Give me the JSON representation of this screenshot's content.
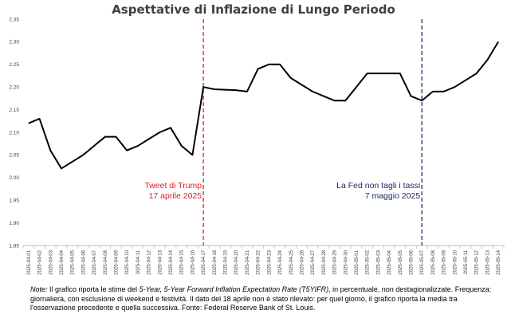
{
  "chart_data": {
    "type": "line",
    "title": "Aspettative di Inflazione di Lungo Periodo",
    "xlabel": "",
    "ylabel": "",
    "ylim": [
      1.85,
      2.35
    ],
    "yticks": [
      "1.85",
      "1.90",
      "1.95",
      "2.00",
      "2.05",
      "2.10",
      "2.15",
      "2.20",
      "2.25",
      "2.30",
      "2.35"
    ],
    "grid": false,
    "categories": [
      "2025-04-01",
      "2025-04-02",
      "2025-04-03",
      "2025-04-04",
      "2025-04-05",
      "2025-04-06",
      "2025-04-07",
      "2025-04-08",
      "2025-04-09",
      "2025-04-10",
      "2025-04-11",
      "2025-04-12",
      "2025-04-13",
      "2025-04-14",
      "2025-04-15",
      "2025-04-16",
      "2025-04-17",
      "2025-04-18",
      "2025-04-19",
      "2025-04-20",
      "2025-04-21",
      "2025-04-22",
      "2025-04-23",
      "2025-04-24",
      "2025-04-25",
      "2025-04-26",
      "2025-04-27",
      "2025-04-28",
      "2025-04-29",
      "2025-04-30",
      "2025-05-01",
      "2025-05-02",
      "2025-05-03",
      "2025-05-04",
      "2025-05-05",
      "2025-05-06",
      "2025-05-07",
      "2025-05-08",
      "2025-05-09",
      "2025-05-10",
      "2025-05-11",
      "2025-05-12",
      "2025-05-13",
      "2025-05-14"
    ],
    "series": [
      {
        "name": "",
        "color": "#000000",
        "values": [
          2.12,
          2.13,
          2.06,
          2.02,
          2.035,
          2.05,
          2.07,
          2.09,
          2.09,
          2.06,
          2.07,
          2.085,
          2.1,
          2.11,
          2.07,
          2.05,
          2.2,
          2.195,
          2.194,
          2.193,
          2.19,
          2.24,
          2.25,
          2.25,
          2.22,
          2.205,
          2.19,
          2.18,
          2.17,
          2.17,
          2.2,
          2.23,
          2.23,
          2.23,
          2.23,
          2.18,
          2.17,
          2.19,
          2.19,
          2.2,
          2.215,
          2.23,
          2.26,
          2.3
        ]
      }
    ],
    "annotations": [
      {
        "date": "2025-04-17",
        "color": "#e02020",
        "lines": [
          "Tweet di Trump",
          "17 aprile 2025"
        ]
      },
      {
        "date": "2025-05-07",
        "color": "#1a2a6c",
        "lines": [
          "La Fed non tagli i tassi",
          "7 maggio 2025"
        ]
      }
    ]
  },
  "note": {
    "label": "Note:",
    "text_before": " Il grafico riporta le stime del ",
    "emphasis": "5-Year, 5-Year Forward Inflation Expectation Rate (T5YIFR)",
    "text_after": ", in percentuale, non destagionalizzate. Frequenza: giornaliera, con esclusione di weekend e festività. Il dato del 18 aprile non è stato rilevato: per quel giorno, il grafico riporta la media tra l'osservazione precedente e quella successiva. Fonte: Federal Reserve Bank of St. Louis."
  }
}
